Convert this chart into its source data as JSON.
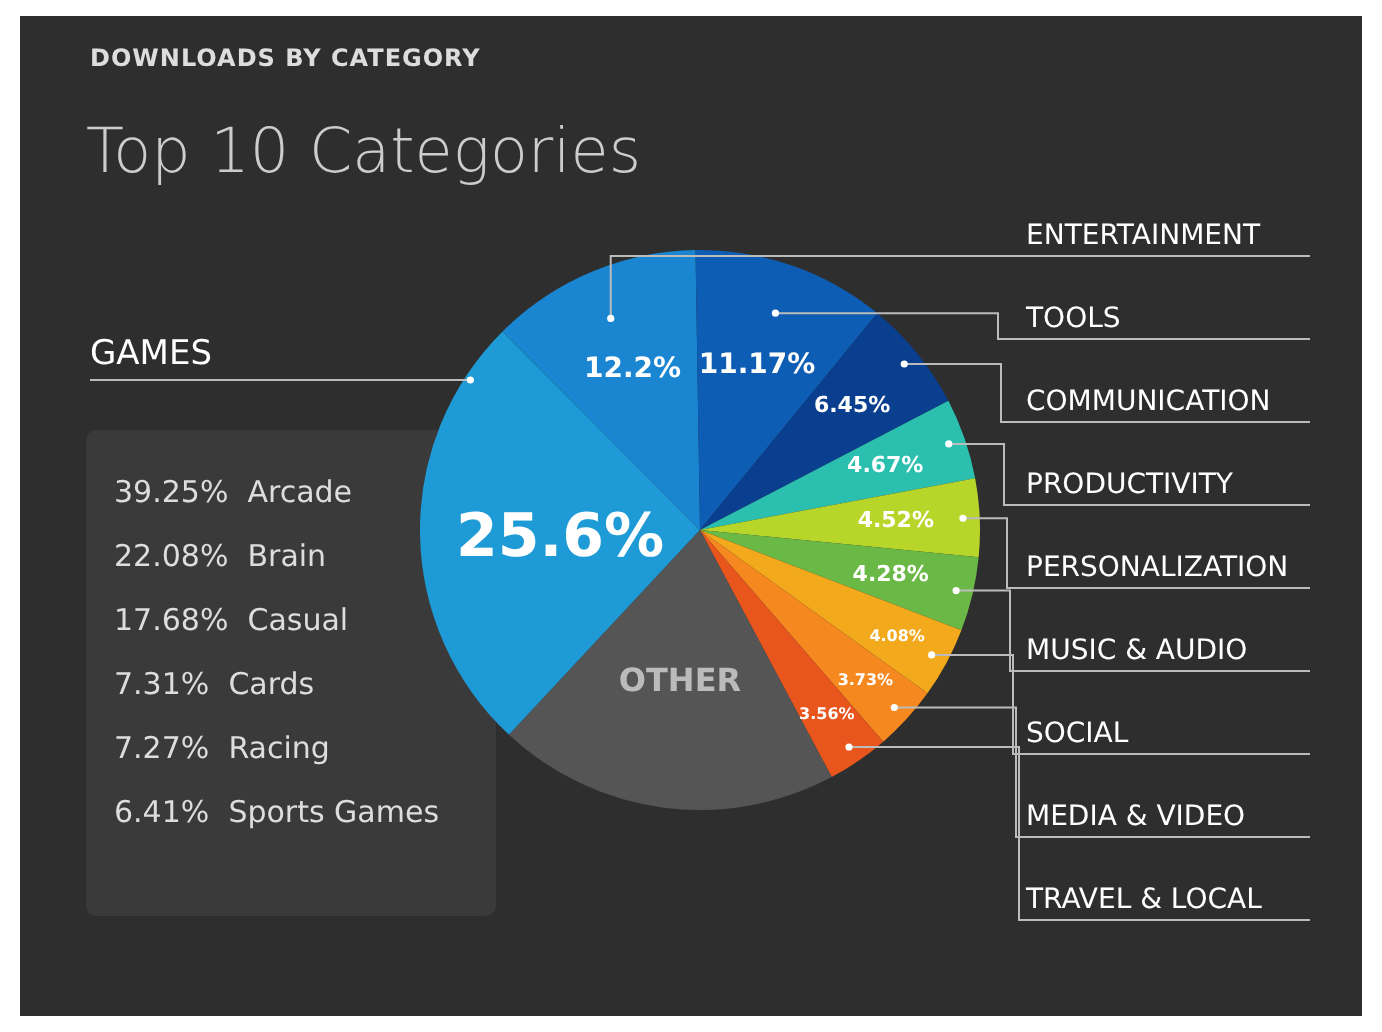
{
  "chart_data": {
    "type": "pie",
    "subtitle": "DOWNLOADS BY CATEGORY",
    "title": "Top 10 Categories",
    "categories": [
      "GAMES",
      "ENTERTAINMENT",
      "TOOLS",
      "COMMUNICATION",
      "PRODUCTIVITY",
      "PERSONALIZATION",
      "MUSIC & AUDIO",
      "SOCIAL",
      "MEDIA & VIDEO",
      "TRAVEL & LOCAL",
      "OTHER"
    ],
    "values": [
      25.6,
      12.2,
      11.17,
      6.45,
      4.67,
      4.52,
      4.28,
      4.08,
      3.73,
      3.56,
      19.74
    ],
    "value_labels": [
      "25.6%",
      "12.2%",
      "11.17%",
      "6.45%",
      "4.67%",
      "4.52%",
      "4.28%",
      "4.08%",
      "3.73%",
      "3.56%",
      null
    ],
    "colors": [
      "#1e9bd7",
      "#1a86d2",
      "#0c5db3",
      "#0a3e8e",
      "#2bbfb0",
      "#b8d52a",
      "#6ab845",
      "#f2a91b",
      "#f5891f",
      "#e8561e",
      "#555555"
    ],
    "legend": false,
    "annotations": [
      "39.25%  Arcade",
      "22.08%  Brain",
      "17.68%  Casual",
      "7.31%  Cards",
      "7.27%  Racing",
      "6.41%  Sports Games"
    ]
  }
}
